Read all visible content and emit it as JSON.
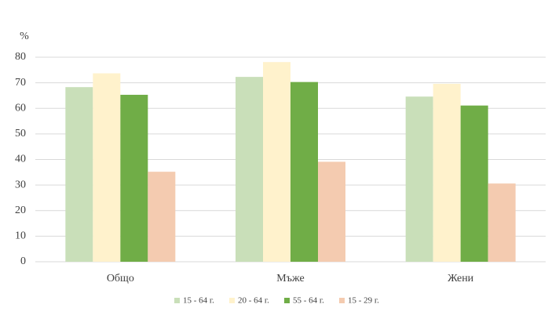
{
  "chart_data": {
    "type": "bar",
    "y_label": "%",
    "categories": [
      "Общо",
      "Мъже",
      "Жени"
    ],
    "series": [
      {
        "name": "15 - 64 г.",
        "color": "#c9dfb9",
        "values": [
          68.3,
          72.3,
          64.6
        ]
      },
      {
        "name": "20 - 64 г.",
        "color": "#fff2cc",
        "values": [
          73.7,
          78.1,
          69.6
        ]
      },
      {
        "name": "55 - 64 г.",
        "color": "#70ad47",
        "values": [
          65.3,
          70.3,
          61.1
        ]
      },
      {
        "name": "15 - 29 г.",
        "color": "#f4cbb0",
        "values": [
          35.2,
          39.1,
          30.6
        ]
      }
    ],
    "ylim": [
      0,
      80
    ],
    "yticks": [
      0,
      10,
      20,
      30,
      40,
      50,
      60,
      70,
      80
    ],
    "grid": true,
    "legend": "bottom"
  }
}
